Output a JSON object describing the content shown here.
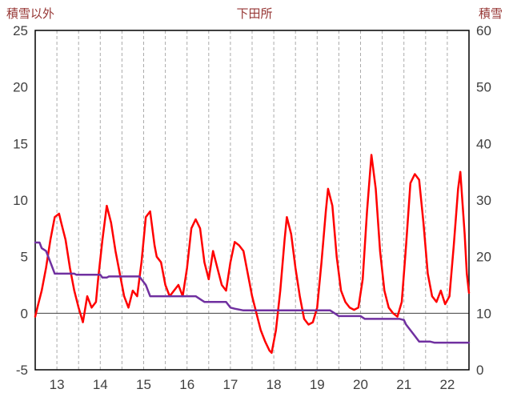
{
  "header": {
    "left_axis_title": "積雪以外",
    "chart_title": "下田所",
    "right_axis_title": "積雪"
  },
  "colors": {
    "header_text": "#963634",
    "tick_text": "#404040",
    "grid": "#ABABAB",
    "border": "#000000",
    "zero_line": "#404040"
  },
  "chart_data": {
    "type": "line",
    "title": "下田所",
    "left_axis_label": "積雪以外",
    "right_axis_label": "積雪",
    "x_range": [
      12.5,
      22.5
    ],
    "x_ticks": [
      13,
      14,
      15,
      16,
      17,
      18,
      19,
      20,
      21,
      22
    ],
    "left_ylim": [
      -5,
      25
    ],
    "left_yticks": [
      -5,
      0,
      5,
      10,
      15,
      20,
      25
    ],
    "right_ylim": [
      0,
      60
    ],
    "right_yticks": [
      0,
      10,
      20,
      30,
      40,
      50,
      60
    ],
    "grid": {
      "vertical_interval": 0.5,
      "zero_line": true,
      "horizontal": false
    },
    "legend": "none",
    "series": [
      {
        "name": "積雪以外",
        "axis": "left",
        "color": "#FF0000",
        "width": 2.5,
        "points": [
          [
            12.5,
            -0.3
          ],
          [
            12.55,
            0.5
          ],
          [
            12.65,
            2.0
          ],
          [
            12.75,
            4.0
          ],
          [
            12.85,
            6.5
          ],
          [
            12.95,
            8.5
          ],
          [
            13.05,
            8.8
          ],
          [
            13.1,
            8.0
          ],
          [
            13.2,
            6.5
          ],
          [
            13.3,
            4.0
          ],
          [
            13.4,
            2.0
          ],
          [
            13.5,
            0.5
          ],
          [
            13.6,
            -0.8
          ],
          [
            13.7,
            1.5
          ],
          [
            13.8,
            0.5
          ],
          [
            13.9,
            1.0
          ],
          [
            13.95,
            3.0
          ],
          [
            14.05,
            6.5
          ],
          [
            14.15,
            9.5
          ],
          [
            14.25,
            8.0
          ],
          [
            14.35,
            5.5
          ],
          [
            14.45,
            3.5
          ],
          [
            14.55,
            1.5
          ],
          [
            14.65,
            0.5
          ],
          [
            14.75,
            2.0
          ],
          [
            14.85,
            1.5
          ],
          [
            14.95,
            4.5
          ],
          [
            15.05,
            8.5
          ],
          [
            15.15,
            9.0
          ],
          [
            15.25,
            6.0
          ],
          [
            15.3,
            5.0
          ],
          [
            15.4,
            4.5
          ],
          [
            15.5,
            2.5
          ],
          [
            15.6,
            1.5
          ],
          [
            15.7,
            2.0
          ],
          [
            15.8,
            2.5
          ],
          [
            15.9,
            1.5
          ],
          [
            16.0,
            4.0
          ],
          [
            16.1,
            7.5
          ],
          [
            16.2,
            8.3
          ],
          [
            16.3,
            7.5
          ],
          [
            16.4,
            4.5
          ],
          [
            16.5,
            3.0
          ],
          [
            16.6,
            5.5
          ],
          [
            16.7,
            4.0
          ],
          [
            16.8,
            2.5
          ],
          [
            16.9,
            2.0
          ],
          [
            17.0,
            4.5
          ],
          [
            17.1,
            6.3
          ],
          [
            17.2,
            6.0
          ],
          [
            17.3,
            5.5
          ],
          [
            17.4,
            3.5
          ],
          [
            17.5,
            1.5
          ],
          [
            17.6,
            0.0
          ],
          [
            17.7,
            -1.5
          ],
          [
            17.8,
            -2.5
          ],
          [
            17.9,
            -3.3
          ],
          [
            17.95,
            -3.5
          ],
          [
            18.05,
            -1.5
          ],
          [
            18.15,
            2.0
          ],
          [
            18.25,
            6.5
          ],
          [
            18.3,
            8.5
          ],
          [
            18.4,
            7.0
          ],
          [
            18.5,
            4.0
          ],
          [
            18.6,
            1.5
          ],
          [
            18.7,
            -0.5
          ],
          [
            18.8,
            -1.0
          ],
          [
            18.9,
            -0.8
          ],
          [
            19.0,
            0.5
          ],
          [
            19.1,
            4.5
          ],
          [
            19.2,
            9.0
          ],
          [
            19.25,
            11.0
          ],
          [
            19.35,
            9.5
          ],
          [
            19.45,
            5.0
          ],
          [
            19.55,
            2.0
          ],
          [
            19.65,
            1.0
          ],
          [
            19.75,
            0.5
          ],
          [
            19.85,
            0.3
          ],
          [
            19.95,
            0.5
          ],
          [
            20.05,
            3.0
          ],
          [
            20.15,
            9.0
          ],
          [
            20.25,
            14.0
          ],
          [
            20.35,
            11.0
          ],
          [
            20.45,
            5.5
          ],
          [
            20.55,
            2.0
          ],
          [
            20.65,
            0.5
          ],
          [
            20.75,
            0.0
          ],
          [
            20.85,
            -0.3
          ],
          [
            20.95,
            1.0
          ],
          [
            21.05,
            6.0
          ],
          [
            21.15,
            11.5
          ],
          [
            21.25,
            12.3
          ],
          [
            21.35,
            11.8
          ],
          [
            21.45,
            8.0
          ],
          [
            21.55,
            3.5
          ],
          [
            21.65,
            1.5
          ],
          [
            21.75,
            1.0
          ],
          [
            21.85,
            2.0
          ],
          [
            21.95,
            0.8
          ],
          [
            22.05,
            1.5
          ],
          [
            22.15,
            6.0
          ],
          [
            22.25,
            11.0
          ],
          [
            22.3,
            12.5
          ],
          [
            22.4,
            7.0
          ],
          [
            22.45,
            3.5
          ],
          [
            22.5,
            1.8
          ]
        ]
      },
      {
        "name": "積雪",
        "axis": "right",
        "color": "#7030A0",
        "width": 2.5,
        "points": [
          [
            12.5,
            22.5
          ],
          [
            12.6,
            22.5
          ],
          [
            12.65,
            21.5
          ],
          [
            12.75,
            21.0
          ],
          [
            12.8,
            20.0
          ],
          [
            12.9,
            18.0
          ],
          [
            12.95,
            17.0
          ],
          [
            13.4,
            17.0
          ],
          [
            13.45,
            16.8
          ],
          [
            14.0,
            16.8
          ],
          [
            14.05,
            16.3
          ],
          [
            14.15,
            16.3
          ],
          [
            14.2,
            16.5
          ],
          [
            14.9,
            16.5
          ],
          [
            15.0,
            15.5
          ],
          [
            15.05,
            15.0
          ],
          [
            15.1,
            14.0
          ],
          [
            15.15,
            13.0
          ],
          [
            16.2,
            13.0
          ],
          [
            16.3,
            12.5
          ],
          [
            16.4,
            12.0
          ],
          [
            16.9,
            12.0
          ],
          [
            17.0,
            11.0
          ],
          [
            17.1,
            10.8
          ],
          [
            17.3,
            10.5
          ],
          [
            19.3,
            10.5
          ],
          [
            19.4,
            10.0
          ],
          [
            19.5,
            9.5
          ],
          [
            20.0,
            9.5
          ],
          [
            20.1,
            9.0
          ],
          [
            20.9,
            9.0
          ],
          [
            21.0,
            8.8
          ],
          [
            21.05,
            8.0
          ],
          [
            21.15,
            7.0
          ],
          [
            21.25,
            6.0
          ],
          [
            21.35,
            5.0
          ],
          [
            21.6,
            5.0
          ],
          [
            21.7,
            4.8
          ],
          [
            22.5,
            4.8
          ]
        ]
      }
    ]
  }
}
